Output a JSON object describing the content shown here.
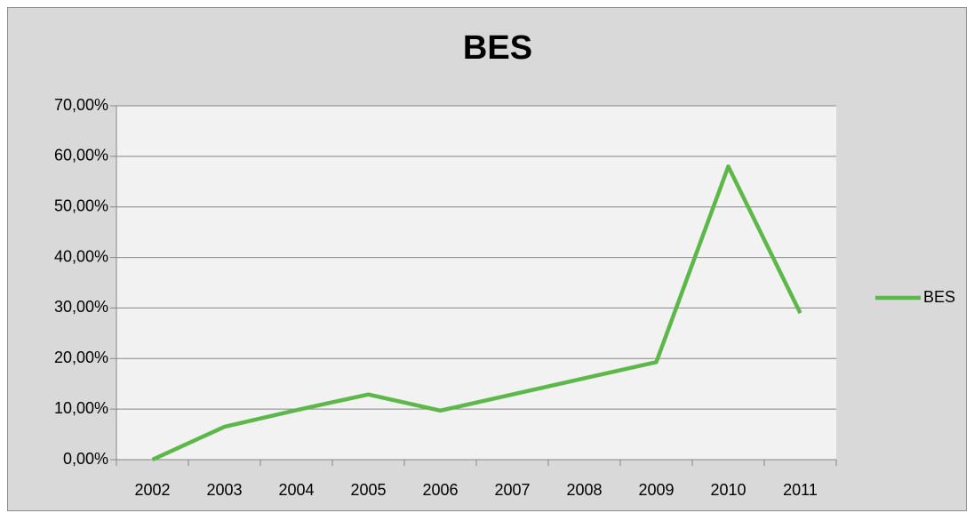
{
  "chart_data": {
    "type": "line",
    "title": "BES",
    "categories": [
      "2002",
      "2003",
      "2004",
      "2005",
      "2006",
      "2007",
      "2008",
      "2009",
      "2010",
      "2011"
    ],
    "series": [
      {
        "name": "BES",
        "color": "#5cb848",
        "values": [
          0,
          6.5,
          9.8,
          12.9,
          9.7,
          12.9,
          16.1,
          19.3,
          58.0,
          29.0
        ]
      }
    ],
    "ylim": [
      0,
      70
    ],
    "yticks": [
      {
        "value": 0,
        "label": "0,00%"
      },
      {
        "value": 10,
        "label": "10,00%"
      },
      {
        "value": 20,
        "label": "20,00%"
      },
      {
        "value": 30,
        "label": "30,00%"
      },
      {
        "value": 40,
        "label": "40,00%"
      },
      {
        "value": 50,
        "label": "50,00%"
      },
      {
        "value": 60,
        "label": "60,00%"
      },
      {
        "value": 70,
        "label": "70,00%"
      }
    ],
    "grid": true,
    "legend": "right"
  }
}
